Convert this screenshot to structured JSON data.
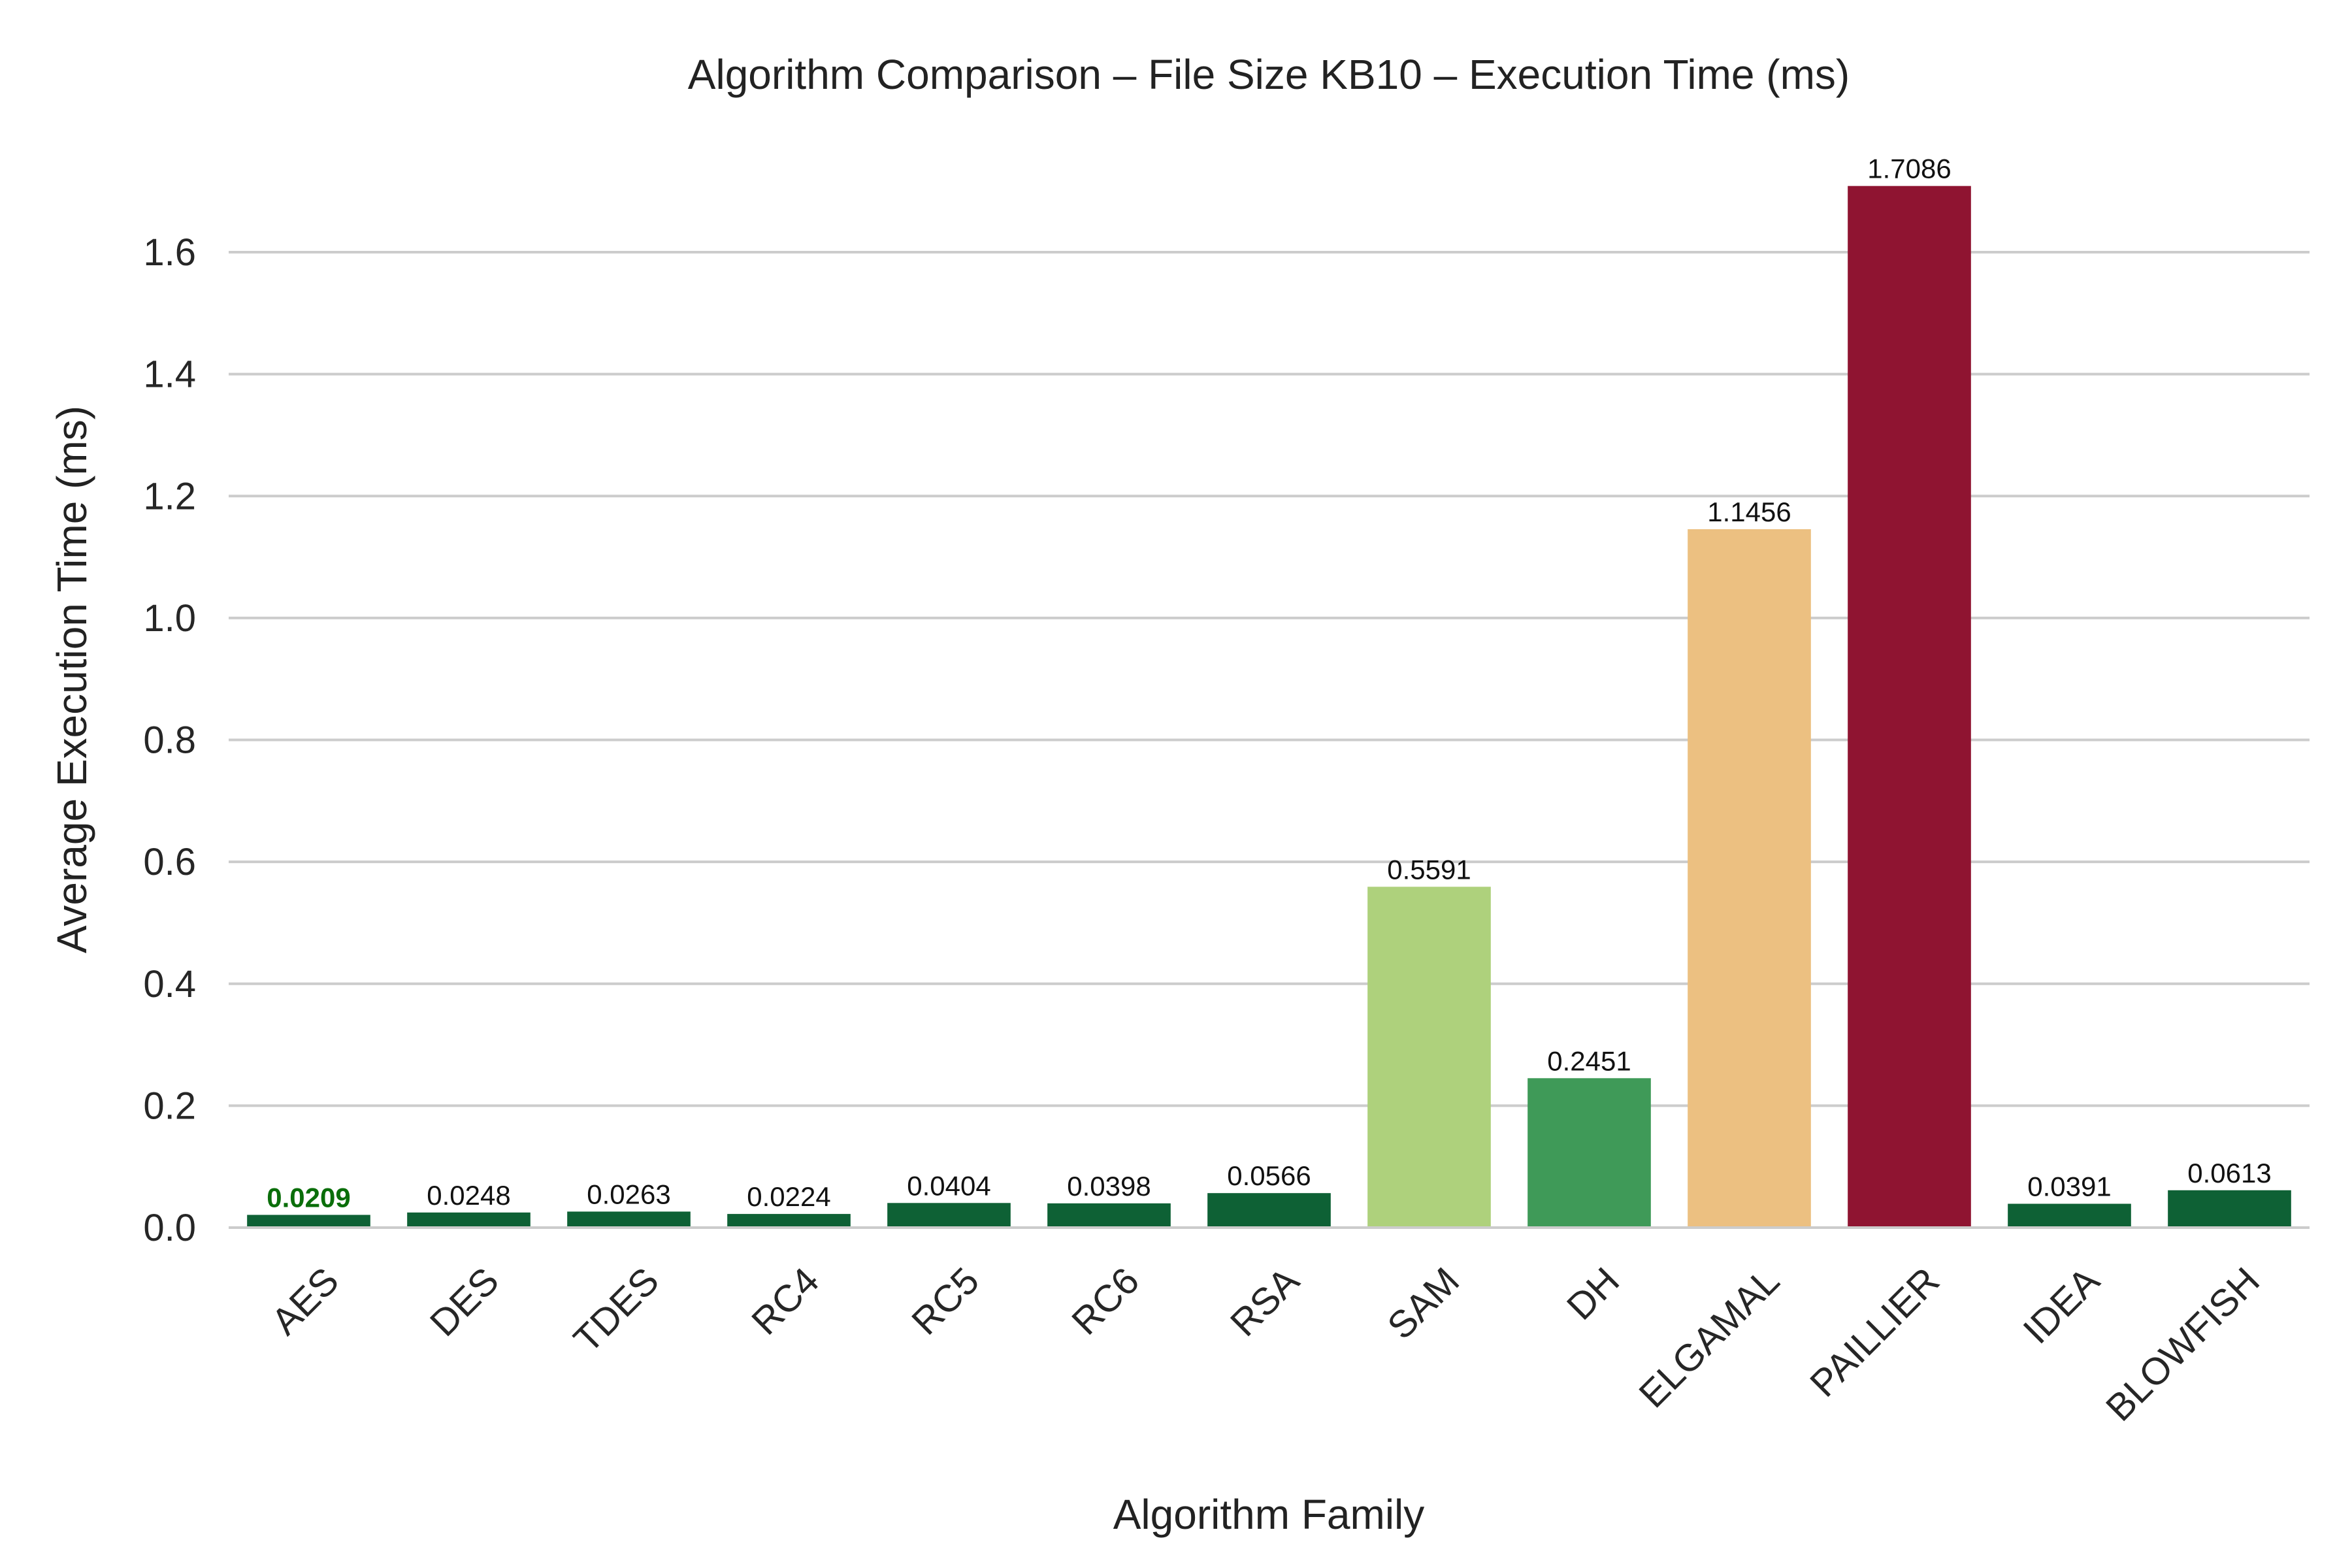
{
  "chart_data": {
    "type": "bar",
    "title": "Algorithm Comparison – File Size KB10 – Execution Time (ms)",
    "xlabel": "Algorithm Family",
    "ylabel": "Average Execution Time (ms)",
    "ylim": [
      0,
      1.75
    ],
    "yticks": [
      "0.0",
      "0.2",
      "0.4",
      "0.6",
      "0.8",
      "1.0",
      "1.2",
      "1.4",
      "1.6"
    ],
    "grid": "horizontal",
    "categories": [
      "AES",
      "DES",
      "TDES",
      "RC4",
      "RC5",
      "RC6",
      "RSA",
      "SAM",
      "DH",
      "ELGAMAL",
      "PAILLIER",
      "IDEA",
      "BLOWFISH"
    ],
    "values": [
      0.0209,
      0.0248,
      0.0263,
      0.0224,
      0.0404,
      0.0398,
      0.0566,
      0.5591,
      0.2451,
      1.1456,
      1.7086,
      0.0391,
      0.0613
    ],
    "value_labels": [
      "0.0209",
      "0.0248",
      "0.0263",
      "0.0224",
      "0.0404",
      "0.0398",
      "0.0566",
      "0.5591",
      "0.2451",
      "1.1456",
      "1.7086",
      "0.0391",
      "0.0613"
    ],
    "colors": [
      "#0e6135",
      "#0e6135",
      "#0e6135",
      "#0e6135",
      "#0e6135",
      "#0e6135",
      "#0e6135",
      "#aed17c",
      "#3f9a58",
      "#ecc081",
      "#8f1431",
      "#0e6135",
      "#0e6135"
    ],
    "highlight_index": 0,
    "highlight_color": "#0a6e0a"
  }
}
